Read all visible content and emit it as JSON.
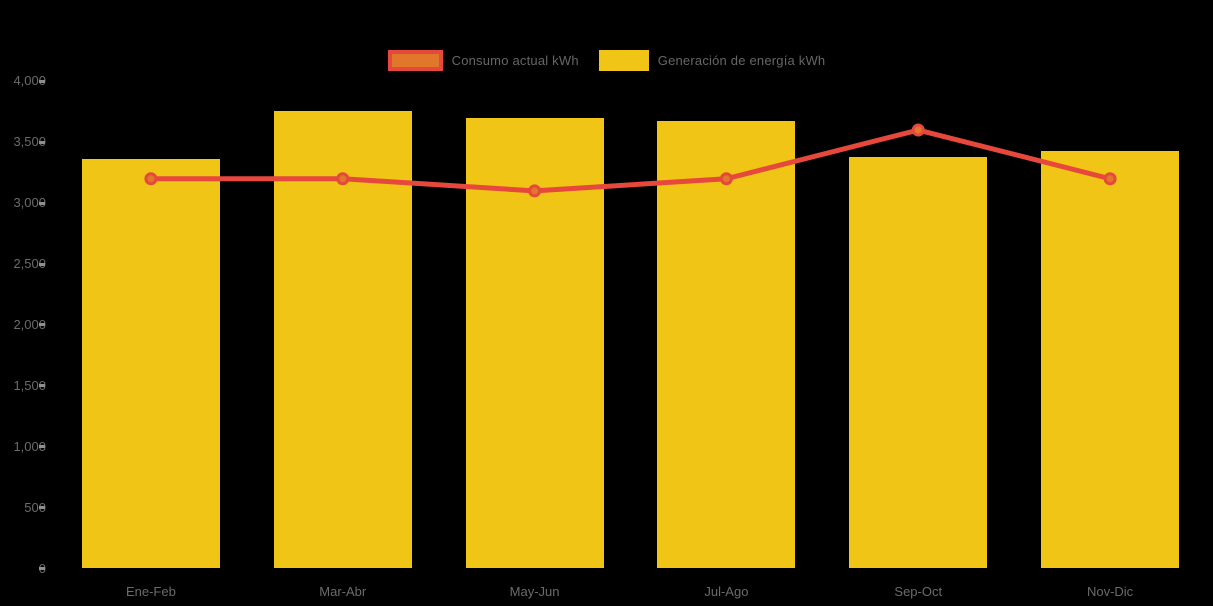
{
  "colors": {
    "background": "#000000",
    "bar": "#F0C516",
    "line": "#E6483C",
    "marker": "#E0772B",
    "axis_text": "#6B6B6B",
    "legend_text": "#666666",
    "tick_mark": "#8F8F8F"
  },
  "chart_data": {
    "type": "combo",
    "title": "",
    "xlabel": "",
    "ylabel": "",
    "categories": [
      "Ene-Feb",
      "Mar-Abr",
      "May-Jun",
      "Jul-Ago",
      "Sep-Oct",
      "Nov-Dic"
    ],
    "series": [
      {
        "name": "Consumo actual kWh",
        "type": "line",
        "color": "#E6483C",
        "marker_color": "#E0772B",
        "values": [
          3200,
          3200,
          3100,
          3200,
          3600,
          3200
        ]
      },
      {
        "name": "Generación de energía kWh",
        "type": "bar",
        "color": "#F0C516",
        "values": [
          3360,
          3760,
          3700,
          3670,
          3380,
          3430
        ]
      }
    ],
    "ylim": [
      0,
      4000
    ],
    "ytick_step": 500,
    "ytick_labels": [
      "0",
      "500",
      "1,000",
      "1,500",
      "2,000",
      "2,500",
      "3,000",
      "3,500",
      "4,000"
    ],
    "grid": false,
    "legend_position": "top-center"
  }
}
